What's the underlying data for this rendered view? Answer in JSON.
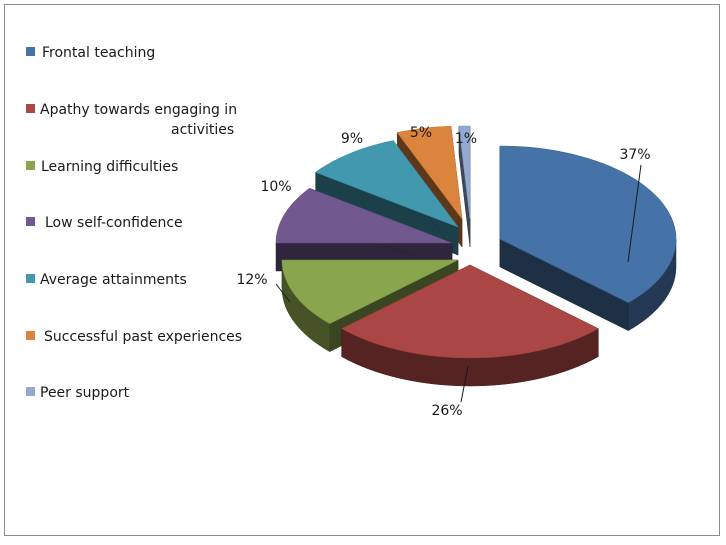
{
  "chart_data": {
    "type": "pie",
    "style": "3d-exploded",
    "title": "",
    "legend_position": "left",
    "categories": [
      "Frontal  teaching",
      "Apathy towards engaging in activities",
      "Learning difficulties",
      "Low self-confidence",
      "Average attainments",
      "Successful past experiences",
      "Peer support"
    ],
    "values": [
      37,
      26,
      12,
      10,
      9,
      5,
      1
    ],
    "labels": [
      "37%",
      "26%",
      "12%",
      "10%",
      "9%",
      "5%",
      "1%"
    ],
    "colors": [
      "#4572A7",
      "#AA4643",
      "#89A54E",
      "#71588F",
      "#4198AF",
      "#DB843D",
      "#93A9CF"
    ],
    "legend_lines": [
      [
        "Frontal  teaching"
      ],
      [
        "Apathy towards engaging in",
        "activities"
      ],
      [
        "Learning difficulties"
      ],
      [
        "Low self-confidence"
      ],
      [
        "Average attainments"
      ],
      [
        "Successful past experiences"
      ],
      [
        "Peer support"
      ]
    ]
  }
}
